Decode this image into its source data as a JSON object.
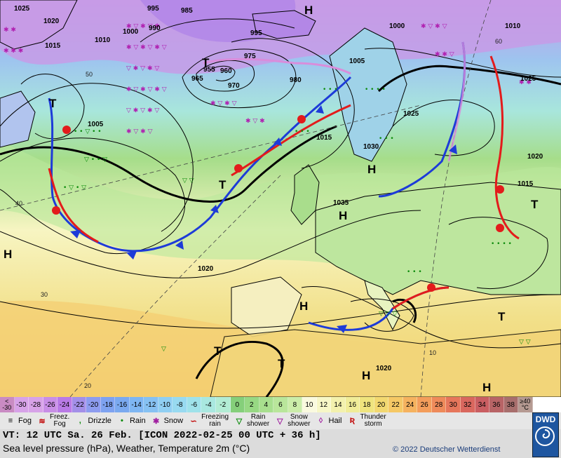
{
  "map": {
    "isobars": [
      "1025",
      "1020",
      "1015",
      "1010",
      "995",
      "990",
      "985",
      "1000",
      "1005",
      "975",
      "970",
      "965",
      "960",
      "955",
      "980",
      "995",
      "1000",
      "1005",
      "1025",
      "1030",
      "1035",
      "1020",
      "1015",
      "1010",
      "1025",
      "1020",
      "1015",
      "1020"
    ],
    "pressure_centers": [
      "H",
      "H",
      "H",
      "H",
      "H",
      "H",
      "T",
      "T",
      "T",
      "T",
      "T",
      "T",
      "T",
      "H"
    ],
    "temp_labels": [
      "40",
      "30",
      "20",
      "10",
      "50",
      "60"
    ]
  },
  "scale": {
    "cells": [
      {
        "label": "<\n-30",
        "color": "#c98bc3"
      },
      {
        "label": "-30",
        "color": "#d7a2e8"
      },
      {
        "label": "-28",
        "color": "#d7a2e8"
      },
      {
        "label": "-26",
        "color": "#c88ee6"
      },
      {
        "label": "-24",
        "color": "#b97ae6"
      },
      {
        "label": "-22",
        "color": "#a38fe8"
      },
      {
        "label": "-20",
        "color": "#8d9cef"
      },
      {
        "label": "-18",
        "color": "#7ea2f0"
      },
      {
        "label": "-16",
        "color": "#7aa9ef"
      },
      {
        "label": "-14",
        "color": "#7eb6f2"
      },
      {
        "label": "-12",
        "color": "#86c1f2"
      },
      {
        "label": "-10",
        "color": "#90cff2"
      },
      {
        "label": "-8",
        "color": "#98daf0"
      },
      {
        "label": "-6",
        "color": "#9fe2ea"
      },
      {
        "label": "-4",
        "color": "#a9e8e0"
      },
      {
        "label": "-2",
        "color": "#b2ecd4"
      },
      {
        "label": "0",
        "color": "#85cf7a"
      },
      {
        "label": "2",
        "color": "#97d883"
      },
      {
        "label": "4",
        "color": "#a8df8e"
      },
      {
        "label": "6",
        "color": "#b9e69b"
      },
      {
        "label": "8",
        "color": "#cbeda9"
      },
      {
        "label": "10",
        "color": "#fafadf"
      },
      {
        "label": "12",
        "color": "#f7f7c7"
      },
      {
        "label": "14",
        "color": "#f3f1ad"
      },
      {
        "label": "16",
        "color": "#f0ec98"
      },
      {
        "label": "18",
        "color": "#efe47d"
      },
      {
        "label": "20",
        "color": "#f2d870"
      },
      {
        "label": "22",
        "color": "#f5c865"
      },
      {
        "label": "24",
        "color": "#f5b25f"
      },
      {
        "label": "26",
        "color": "#f39d5b"
      },
      {
        "label": "28",
        "color": "#ee8a5a"
      },
      {
        "label": "30",
        "color": "#e6765b"
      },
      {
        "label": "32",
        "color": "#d9675e"
      },
      {
        "label": "34",
        "color": "#c95e62"
      },
      {
        "label": "36",
        "color": "#b86466"
      },
      {
        "label": "38",
        "color": "#a86f6d"
      },
      {
        "label": "≥40\n°C",
        "color": "#b59a92"
      }
    ]
  },
  "legend": {
    "items": [
      {
        "icon": "fog-icon",
        "symbol": "≡",
        "label": "Fog",
        "color": "#000"
      },
      {
        "icon": "freezing-fog-icon",
        "symbol": "≋",
        "label": "Freez.\nFog",
        "color": "#c00000"
      },
      {
        "icon": "drizzle-icon",
        "symbol": ",",
        "label": "Drizzle",
        "color": "#0a8a0a"
      },
      {
        "icon": "rain-icon",
        "symbol": "•",
        "label": "Rain",
        "color": "#0a8a0a"
      },
      {
        "icon": "snow-icon",
        "symbol": "✱",
        "label": "Snow",
        "color": "#a020a0"
      },
      {
        "icon": "freezing-rain-icon",
        "symbol": "∽",
        "label": "Freezing\nrain",
        "color": "#c00000"
      },
      {
        "icon": "rain-shower-icon",
        "symbol": "▽",
        "label": "Rain\nshower",
        "color": "#0a8a0a"
      },
      {
        "icon": "snow-shower-icon",
        "symbol": "▽",
        "label": "Snow\nshower",
        "color": "#a020a0"
      },
      {
        "icon": "hail-icon",
        "symbol": "◊",
        "label": "Hail",
        "color": "#a020a0"
      },
      {
        "icon": "thunderstorm-icon",
        "symbol": "Ʀ",
        "label": "Thunder\nstorm",
        "color": "#c00000"
      }
    ]
  },
  "footer": {
    "vt": "VT: 12 UTC Sa.  26 Feb. [ICON 2022-02-25  00 UTC + 36 h]",
    "description": "Sea level pressure (hPa), Weather, Temperature 2m (°C)",
    "copyright": "© 2022 Deutscher Wetterdienst",
    "logo": "DWD"
  }
}
